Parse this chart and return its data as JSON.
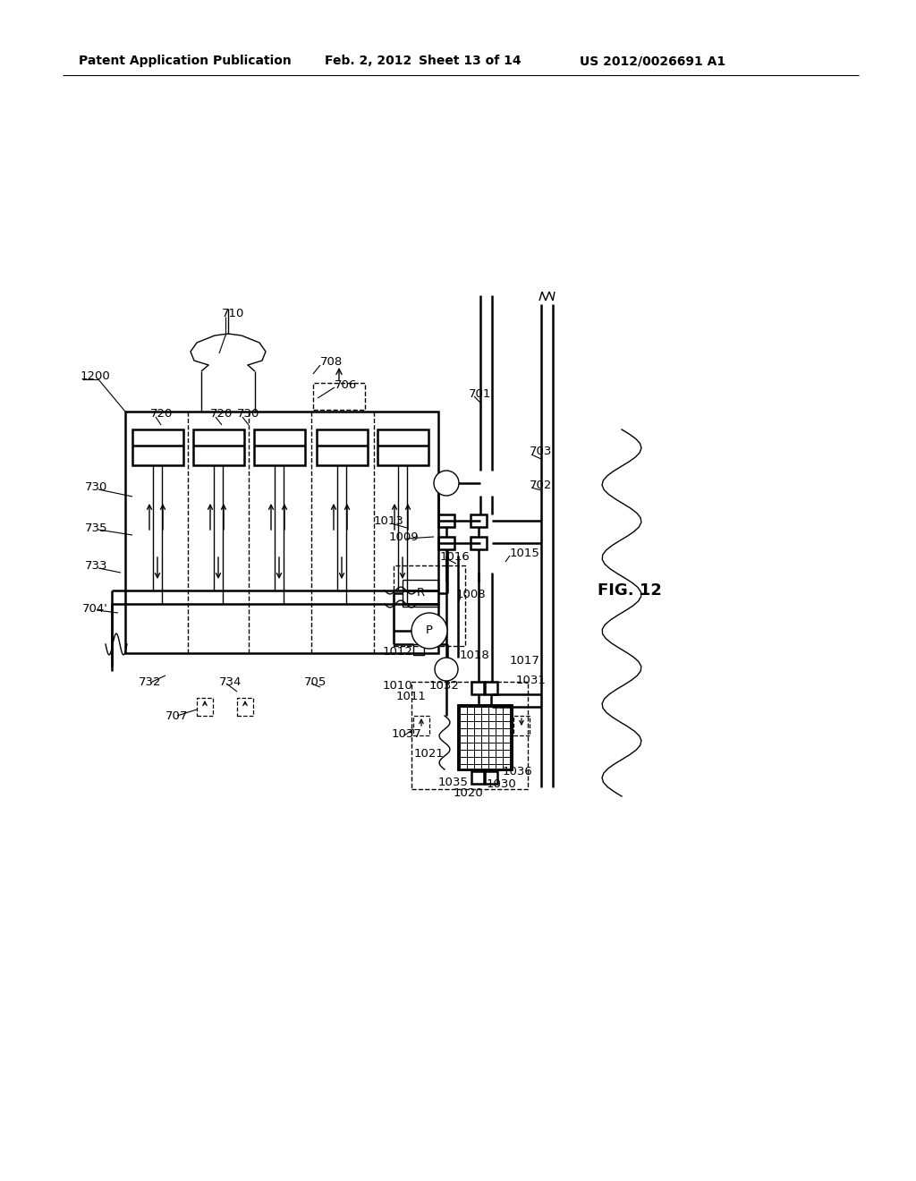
{
  "bg_color": "#ffffff",
  "header_left": "Patent Application Publication",
  "header_mid1": "Feb. 2, 2012",
  "header_mid2": "Sheet 13 of 14",
  "header_right": "US 2012/0026691 A1",
  "fig_label": "FIG. 12",
  "diagram_number": "1200"
}
